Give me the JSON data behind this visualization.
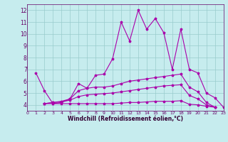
{
  "xlabel": "Windchill (Refroidissement éolien,°C)",
  "xlim": [
    0,
    23
  ],
  "ylim": [
    3.5,
    12.5
  ],
  "yticks": [
    4,
    5,
    6,
    7,
    8,
    9,
    10,
    11,
    12
  ],
  "xticks": [
    0,
    1,
    2,
    3,
    4,
    5,
    6,
    7,
    8,
    9,
    10,
    11,
    12,
    13,
    14,
    15,
    16,
    17,
    18,
    19,
    20,
    21,
    22,
    23
  ],
  "background_color": "#c6ecee",
  "line_color": "#aa00aa",
  "grid_color": "#99cccc",
  "lines": [
    {
      "xstart": 1,
      "y": [
        6.7,
        5.2,
        4.1,
        4.2,
        4.5,
        5.8,
        5.4,
        6.5,
        6.6,
        7.9,
        11.0,
        9.4,
        12.0,
        10.4,
        11.3,
        10.1,
        7.0,
        10.4,
        7.0,
        6.7,
        5.0,
        4.6,
        3.8
      ]
    },
    {
      "xstart": 2,
      "y": [
        4.1,
        4.2,
        4.3,
        4.5,
        5.2,
        5.4,
        5.5,
        5.5,
        5.6,
        5.8,
        6.0,
        6.1,
        6.2,
        6.3,
        6.4,
        6.5,
        6.6,
        5.5,
        5.1,
        4.2,
        3.8
      ]
    },
    {
      "xstart": 2,
      "y": [
        4.1,
        4.2,
        4.25,
        4.4,
        4.7,
        4.85,
        4.9,
        4.95,
        5.0,
        5.1,
        5.2,
        5.3,
        5.4,
        5.5,
        5.6,
        5.65,
        5.7,
        4.8,
        4.5,
        4.0,
        3.8
      ]
    },
    {
      "xstart": 2,
      "y": [
        4.1,
        4.1,
        4.1,
        4.1,
        4.1,
        4.1,
        4.1,
        4.1,
        4.1,
        4.15,
        4.2,
        4.2,
        4.25,
        4.3,
        4.3,
        4.3,
        4.35,
        4.05,
        4.0,
        3.88,
        3.8
      ]
    }
  ]
}
